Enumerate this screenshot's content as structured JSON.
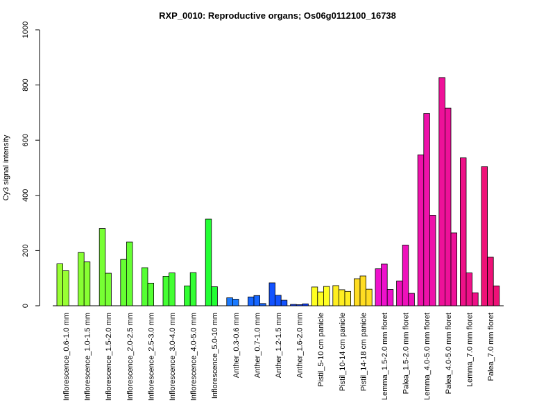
{
  "chart_data": {
    "type": "bar",
    "title": "RXP_0010: Reproductive organs; Os06g0112100_16738",
    "xlabel": "",
    "ylabel": "Cy3 signal intensity",
    "ylim": [
      0,
      1000
    ],
    "yticks": [
      0,
      200,
      400,
      600,
      800,
      1000
    ],
    "grid": false,
    "groups": [
      {
        "label": "Inflorescence_0.6-1.0 mm",
        "color": "#99ff33",
        "values": [
          152,
          127
        ]
      },
      {
        "label": "Inflorescence_1.0-1.5 mm",
        "color": "#88ff33",
        "values": [
          193,
          159
        ]
      },
      {
        "label": "Inflorescence_1.5-2.0 mm",
        "color": "#77ff33",
        "values": [
          280,
          118
        ]
      },
      {
        "label": "Inflorescence_2.0-2.5 mm",
        "color": "#66ff33",
        "values": [
          168,
          231
        ]
      },
      {
        "label": "Inflorescence_2.5-3.0 mm",
        "color": "#55ff33",
        "values": [
          138,
          82
        ]
      },
      {
        "label": "Inflorescence_3.0-4.0 mm",
        "color": "#44ff33",
        "values": [
          107,
          119
        ]
      },
      {
        "label": "Inflorescence_4.0-5.0 mm",
        "color": "#33ff33",
        "values": [
          72,
          120
        ]
      },
      {
        "label": "Inflorescence_5.0-10 mm",
        "color": "#22ff33",
        "values": [
          314,
          69
        ]
      },
      {
        "label": "Anther_0.3-0.6 mm",
        "color": "#1a7aff",
        "values": [
          29,
          24
        ]
      },
      {
        "label": "Anther_0.7-1.0 mm",
        "color": "#1666ff",
        "values": [
          32,
          37,
          8
        ]
      },
      {
        "label": "Anther_1.2-1.5 mm",
        "color": "#1252ff",
        "values": [
          83,
          38,
          20
        ]
      },
      {
        "label": "Anther_1.6-2.0 mm",
        "color": "#0e3eff",
        "values": [
          5,
          4,
          7
        ]
      },
      {
        "label": "Pistil_5-10 cm panicle",
        "color": "#ffff22",
        "values": [
          68,
          50,
          70
        ]
      },
      {
        "label": "Pistil_10-14 cm panicle",
        "color": "#ffee22",
        "values": [
          73,
          58,
          52
        ]
      },
      {
        "label": "Pistil_14-18 cm panicle",
        "color": "#ffdd22",
        "values": [
          98,
          108,
          60
        ]
      },
      {
        "label": "Lemma_1.5-2.0 mm floret",
        "color": "#ee11cc",
        "values": [
          134,
          151,
          59
        ]
      },
      {
        "label": "Palea_1.5-2.0 mm floret",
        "color": "#ee11bb",
        "values": [
          90,
          220,
          45
        ]
      },
      {
        "label": "Lemma_4.0-5.0 mm floret",
        "color": "#ee11aa",
        "values": [
          547,
          697,
          328
        ]
      },
      {
        "label": "Palea_4.0-5.0 mm floret",
        "color": "#ee1199",
        "values": [
          827,
          716,
          264
        ]
      },
      {
        "label": "Lemma_7.0 mm floret",
        "color": "#ee1188",
        "values": [
          536,
          119,
          47
        ]
      },
      {
        "label": "Palea_7.0 mm floret",
        "color": "#ee1177",
        "values": [
          504,
          176,
          72
        ]
      }
    ]
  }
}
